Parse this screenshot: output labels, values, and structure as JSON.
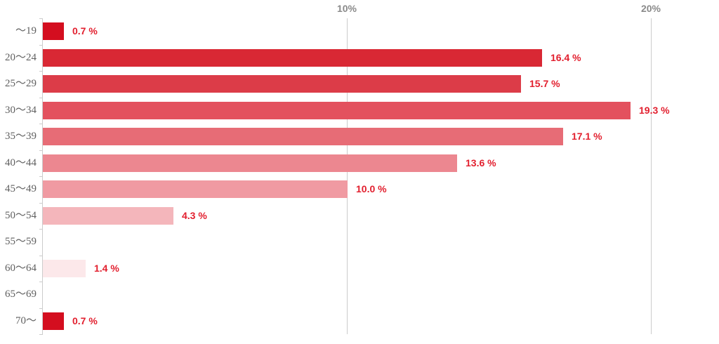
{
  "chart_data": {
    "type": "bar",
    "orientation": "horizontal",
    "title": "",
    "xlabel": "",
    "ylabel": "",
    "categories": [
      "〜19",
      "20〜24",
      "25〜29",
      "30〜34",
      "35〜39",
      "40〜44",
      "45〜49",
      "50〜54",
      "55〜59",
      "60〜64",
      "65〜69",
      "70〜"
    ],
    "values": [
      0.7,
      16.4,
      15.7,
      19.3,
      17.1,
      13.6,
      10.0,
      4.3,
      0,
      1.4,
      0,
      0.7
    ],
    "value_labels": [
      "0.7 %",
      "16.4 %",
      "15.7 %",
      "19.3 %",
      "17.1 %",
      "13.6 %",
      "10.0 %",
      "4.3 %",
      "",
      "1.4 %",
      "",
      "0.7 %"
    ],
    "bar_colors": [
      "#d40e1f",
      "#d92834",
      "#dc3c48",
      "#e3515e",
      "#e76c76",
      "#ec8790",
      "#f09aa2",
      "#f4b6bb",
      null,
      "#fce8ea",
      null,
      "#d40e1f"
    ],
    "x_axis": {
      "min": 0,
      "max": 22.2,
      "unit": "%",
      "ticks": [
        {
          "value": 10,
          "label": "10%"
        },
        {
          "value": 20,
          "label": "20%"
        }
      ]
    },
    "grid": "vertical-gridlines-only",
    "legend": "none",
    "colors": {
      "axis_line": "#cccccc",
      "gridline": "#cccccc",
      "tick_label": "#8a8a8a",
      "category_label": "#606060",
      "value_label": "#e21f2e",
      "background": "#ffffff"
    }
  }
}
